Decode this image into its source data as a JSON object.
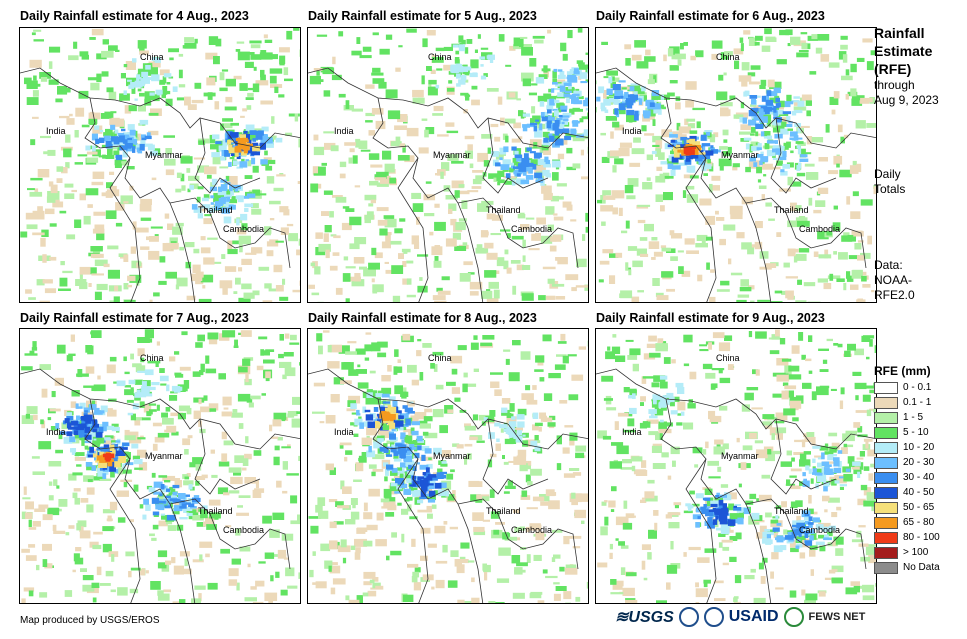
{
  "panels": [
    {
      "title": "Daily Rainfall estimate for 4 Aug., 2023"
    },
    {
      "title": "Daily Rainfall estimate for 5 Aug., 2023"
    },
    {
      "title": "Daily Rainfall estimate for 6 Aug., 2023"
    },
    {
      "title": "Daily Rainfall estimate for 7 Aug., 2023"
    },
    {
      "title": "Daily Rainfall estimate for 8 Aug., 2023"
    },
    {
      "title": "Daily Rainfall estimate for 9 Aug., 2023"
    }
  ],
  "places": {
    "china": "China",
    "india": "India",
    "myanmar": "Myanmar",
    "thailand": "Thailand",
    "cambodia": "Cambodia"
  },
  "side": {
    "title_line1": "Rainfall",
    "title_line2": "Estimate",
    "title_line3": "(RFE)",
    "through": "through",
    "date": "Aug 9, 2023",
    "daily": "Daily",
    "totals": "Totals",
    "data_label": "Data:",
    "source_line1": "NOAA-",
    "source_line2": "RFE2.0"
  },
  "legend": {
    "title": "RFE (mm)",
    "items": [
      {
        "label": "0 - 0.1",
        "color": "#ffffff"
      },
      {
        "label": "0.1 - 1",
        "color": "#ecd9b9"
      },
      {
        "label": "1 - 5",
        "color": "#b4f0a8"
      },
      {
        "label": "5 - 10",
        "color": "#62e362"
      },
      {
        "label": "10 - 20",
        "color": "#b4ecf8"
      },
      {
        "label": "20 - 30",
        "color": "#6cbfff"
      },
      {
        "label": "30 - 40",
        "color": "#3a8ef0"
      },
      {
        "label": "40 - 50",
        "color": "#1c55d6"
      },
      {
        "label": "50 - 65",
        "color": "#f5e07a"
      },
      {
        "label": "65 - 80",
        "color": "#f59a1f"
      },
      {
        "label": "80 - 100",
        "color": "#ef3b18"
      },
      {
        "label": "> 100",
        "color": "#a41c1c"
      },
      {
        "label": "No Data",
        "color": "#8c8c8c"
      }
    ]
  },
  "footer": {
    "credit": "Map produced by USGS/EROS",
    "logos": {
      "usgs": "≋USGS",
      "usaid": "USAID",
      "fewsnet": "FEWS NET"
    }
  }
}
